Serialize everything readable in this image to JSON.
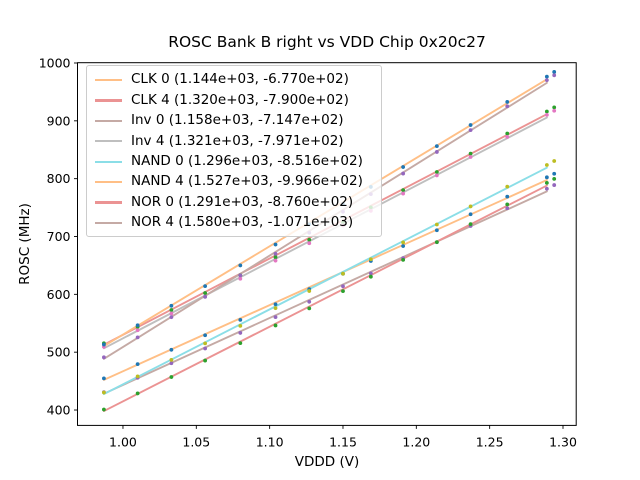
{
  "figure": {
    "background": "#ffffff",
    "text_color": "#000000",
    "spine_color": "#000000"
  },
  "chart_data": {
    "type": "scatter",
    "title": "ROSC Bank B right vs VDD Chip 0x20c27",
    "xlabel": "VDDD (V)",
    "ylabel": "ROSC (MHz)",
    "grid": false,
    "xlim": [
      0.969,
      1.309
    ],
    "ylim": [
      373.4,
      1000.5
    ],
    "x_ticks": {
      "values": [
        1.0,
        1.05,
        1.1,
        1.15,
        1.2,
        1.25,
        1.3
      ],
      "labels": [
        "1.00",
        "1.05",
        "1.10",
        "1.15",
        "1.20",
        "1.25",
        "1.30"
      ]
    },
    "y_ticks": {
      "values": [
        400,
        500,
        600,
        700,
        800,
        900,
        1000
      ],
      "labels": [
        "400",
        "500",
        "600",
        "700",
        "800",
        "900",
        "1000"
      ]
    },
    "legend": {
      "position": "upper-left",
      "frame_color": "#cccccc",
      "background": "rgba(255,255,255,0.8)"
    },
    "x": [
      0.987,
      1.01,
      1.033,
      1.056,
      1.08,
      1.104,
      1.127,
      1.15,
      1.169,
      1.191,
      1.214,
      1.237,
      1.262,
      1.289,
      1.294
    ],
    "fit_line_x_range": [
      0.987,
      1.289
    ],
    "series": [
      {
        "name": "CLK 0",
        "legend_label": "CLK 0 (1.144e+03, -6.770e+02)",
        "slope": 1144,
        "intercept": -677.0,
        "line_color": "#ffbf86",
        "point_color": "#1f77b4",
        "y": [
          454.7,
          479.3,
          504.1,
          529.3,
          555.9,
          582.9,
          609.0,
          635.5,
          657.6,
          683.5,
          710.8,
          738.5,
          769.0,
          802.3,
          808.5
        ]
      },
      {
        "name": "CLK 4",
        "legend_label": "CLK 4 (1.320e+03, -7.900e+02)",
        "slope": 1320,
        "intercept": -790.0,
        "line_color": "#eb9393",
        "point_color": "#2ca02c",
        "y": [
          515.4,
          544.0,
          572.9,
          602.2,
          633.0,
          664.2,
          694.4,
          724.9,
          750.4,
          780.1,
          811.5,
          843.2,
          878.1,
          916.1,
          923.2
        ]
      },
      {
        "name": "Inv 0",
        "legend_label": "Inv 0 (1.158e+03, -7.147e+02)",
        "slope": 1158,
        "intercept": -714.7,
        "line_color": "#c5aaa5",
        "point_color": "#9467bd",
        "y": [
          430.9,
          455.7,
          480.9,
          506.4,
          533.3,
          560.6,
          587.1,
          613.9,
          636.3,
          662.5,
          690.1,
          718.2,
          748.9,
          782.6,
          788.9
        ]
      },
      {
        "name": "Inv 4",
        "legend_label": "Inv 4 (1.321e+03, -7.971e+02)",
        "slope": 1321,
        "intercept": -797.1,
        "line_color": "#bfbfbf",
        "point_color": "#e377c2",
        "y": [
          509.3,
          537.9,
          566.9,
          596.1,
          627.0,
          658.2,
          688.4,
          719.0,
          744.4,
          774.2,
          805.6,
          837.4,
          872.2,
          910.3,
          917.4
        ]
      },
      {
        "name": "NAND 0",
        "legend_label": "NAND 0 (1.296e+03, -8.516e+02)",
        "slope": 1296,
        "intercept": -851.6,
        "line_color": "#8bdee7",
        "point_color": "#bcbd22",
        "y": [
          430.2,
          458.2,
          486.6,
          515.2,
          545.5,
          576.1,
          605.7,
          635.7,
          660.7,
          689.9,
          720.8,
          752.0,
          786.2,
          823.6,
          830.6
        ]
      },
      {
        "name": "NAND 4",
        "legend_label": "NAND 4 (1.527e+03, -9.966e+02)",
        "slope": 1527,
        "intercept": -996.6,
        "line_color": "#ffbf86",
        "point_color": "#1f77b4",
        "y": [
          513.2,
          546.5,
          580.2,
          614.2,
          650.0,
          686.1,
          721.1,
          756.4,
          785.7,
          820.1,
          856.2,
          892.7,
          932.7,
          976.4,
          984.5
        ]
      },
      {
        "name": "NOR 0",
        "legend_label": "NOR 0 (1.291e+03, -8.760e+02)",
        "slope": 1291,
        "intercept": -876.0,
        "line_color": "#eb9393",
        "point_color": "#2ca02c",
        "y": [
          400.8,
          428.7,
          457.0,
          485.5,
          515.7,
          546.2,
          575.7,
          605.6,
          630.5,
          659.6,
          690.3,
          721.4,
          755.5,
          792.7,
          799.7
        ]
      },
      {
        "name": "NOR 4",
        "legend_label": "NOR 4 (1.580e+03, -1.071e+03)",
        "slope": 1580,
        "intercept": -1071.0,
        "line_color": "#c5aaa5",
        "point_color": "#9467bd",
        "y": [
          491.1,
          525.6,
          560.5,
          595.7,
          632.8,
          670.2,
          706.4,
          742.9,
          773.3,
          808.8,
          846.2,
          883.9,
          925.2,
          970.3,
          978.7
        ]
      }
    ]
  }
}
